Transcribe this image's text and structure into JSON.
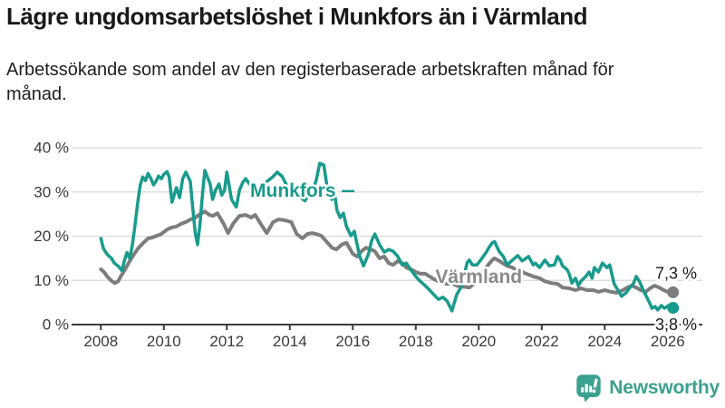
{
  "header": {
    "title": "Lägre ungdomsarbetslöshet i Munkfors än i Värmland",
    "subtitle": "Arbetssökande som andel av den registerbaserade arbetskraften månad för månad."
  },
  "footer": {
    "brand": "Newsworthy",
    "logo_icon": "bar-chart-exclamation-pin",
    "brand_color": "#3ba191"
  },
  "colors": {
    "munkfors": "#189b8d",
    "varmland": "#7d7d7d",
    "varmland_label": "#8a8a8a",
    "grid": "#d9d9d9",
    "axis": "#3c3c3c",
    "axis_text": "#3a3a3a",
    "value_label_text": "#1a1a1a"
  },
  "chart_data": {
    "type": "line",
    "title": "Lägre ungdomsarbetslöshet i Munkfors än i Värmland",
    "subtitle": "Arbetssökande som andel av den registerbaserade arbetskraften månad för månad.",
    "unit": "%",
    "xlim": [
      2007.1,
      2027.1
    ],
    "ylim": [
      0,
      40
    ],
    "grid": "horizontal",
    "legend_position": "inline-labels",
    "x_ticks": [
      2008,
      2010,
      2012,
      2014,
      2016,
      2018,
      2020,
      2022,
      2024,
      2026
    ],
    "y_ticks": [
      {
        "value": 0,
        "label": "0 %"
      },
      {
        "value": 10,
        "label": "10 %"
      },
      {
        "value": 20,
        "label": "20 %"
      },
      {
        "value": 30,
        "label": "30 %"
      },
      {
        "value": 40,
        "label": "40 %"
      }
    ],
    "annotations": [
      {
        "text": "Munkfors",
        "x": 2014.1,
        "y": 30.4,
        "color": "#189b8d",
        "leader": {
          "x1": 2015.65,
          "y1": 30.2,
          "x2": 2016.05,
          "y2": 30.2
        }
      },
      {
        "text": "Värmland",
        "x": 2020.0,
        "y": 10.9,
        "color": "#8a8a8a"
      }
    ],
    "series": [
      {
        "name": "Värmland",
        "color": "#7d7d7d",
        "end_value": 7.3,
        "end_label": "7,3 %",
        "end_label_side": "above",
        "points": [
          [
            2008.0,
            12.5
          ],
          [
            2008.1,
            11.9
          ],
          [
            2008.2,
            10.9
          ],
          [
            2008.35,
            9.8
          ],
          [
            2008.45,
            9.4
          ],
          [
            2008.55,
            9.8
          ],
          [
            2008.63,
            10.9
          ],
          [
            2008.77,
            12.5
          ],
          [
            2008.92,
            14.4
          ],
          [
            2009.06,
            16.0
          ],
          [
            2009.2,
            17.4
          ],
          [
            2009.35,
            18.5
          ],
          [
            2009.5,
            19.5
          ],
          [
            2009.63,
            19.7
          ],
          [
            2009.78,
            20.1
          ],
          [
            2009.92,
            20.5
          ],
          [
            2010.1,
            21.5
          ],
          [
            2010.25,
            22.0
          ],
          [
            2010.4,
            22.2
          ],
          [
            2010.55,
            22.8
          ],
          [
            2010.7,
            23.2
          ],
          [
            2010.85,
            23.8
          ],
          [
            2011.0,
            24.2
          ],
          [
            2011.15,
            25.0
          ],
          [
            2011.3,
            25.6
          ],
          [
            2011.45,
            24.8
          ],
          [
            2011.56,
            24.6
          ],
          [
            2011.7,
            25.2
          ],
          [
            2011.9,
            22.8
          ],
          [
            2012.04,
            20.7
          ],
          [
            2012.2,
            22.8
          ],
          [
            2012.4,
            24.6
          ],
          [
            2012.6,
            24.8
          ],
          [
            2012.77,
            24.2
          ],
          [
            2012.9,
            24.8
          ],
          [
            2013.13,
            22.2
          ],
          [
            2013.27,
            20.7
          ],
          [
            2013.47,
            23.2
          ],
          [
            2013.64,
            23.8
          ],
          [
            2013.84,
            23.6
          ],
          [
            2014.05,
            23.2
          ],
          [
            2014.22,
            20.5
          ],
          [
            2014.4,
            19.5
          ],
          [
            2014.56,
            20.5
          ],
          [
            2014.7,
            20.7
          ],
          [
            2014.84,
            20.5
          ],
          [
            2015.0,
            20.1
          ],
          [
            2015.2,
            18.5
          ],
          [
            2015.34,
            17.4
          ],
          [
            2015.48,
            17.0
          ],
          [
            2015.65,
            18.1
          ],
          [
            2015.8,
            18.5
          ],
          [
            2016.0,
            16.0
          ],
          [
            2016.14,
            15.4
          ],
          [
            2016.28,
            16.6
          ],
          [
            2016.42,
            17.4
          ],
          [
            2016.57,
            17.0
          ],
          [
            2016.7,
            16.6
          ],
          [
            2016.85,
            15.0
          ],
          [
            2017.0,
            15.4
          ],
          [
            2017.14,
            13.9
          ],
          [
            2017.28,
            13.5
          ],
          [
            2017.43,
            14.4
          ],
          [
            2017.57,
            13.9
          ],
          [
            2017.7,
            12.9
          ],
          [
            2017.85,
            12.5
          ],
          [
            2018.0,
            11.9
          ],
          [
            2018.14,
            11.5
          ],
          [
            2018.3,
            11.5
          ],
          [
            2018.44,
            10.9
          ],
          [
            2018.57,
            10.3
          ],
          [
            2018.72,
            9.8
          ],
          [
            2018.86,
            9.4
          ],
          [
            2019.0,
            9.2
          ],
          [
            2019.15,
            9.4
          ],
          [
            2019.3,
            8.8
          ],
          [
            2019.45,
            8.6
          ],
          [
            2019.6,
            8.5
          ],
          [
            2019.7,
            8.4
          ],
          [
            2019.85,
            9.2
          ],
          [
            2020.0,
            10.5
          ],
          [
            2020.14,
            12.0
          ],
          [
            2020.3,
            13.5
          ],
          [
            2020.43,
            14.6
          ],
          [
            2020.5,
            15.0
          ],
          [
            2020.65,
            14.4
          ],
          [
            2020.8,
            13.7
          ],
          [
            2020.9,
            13.3
          ],
          [
            2021.07,
            12.9
          ],
          [
            2021.16,
            12.5
          ],
          [
            2021.3,
            12.3
          ],
          [
            2021.44,
            11.7
          ],
          [
            2021.58,
            11.3
          ],
          [
            2021.73,
            10.9
          ],
          [
            2021.93,
            10.5
          ],
          [
            2022.1,
            9.8
          ],
          [
            2022.3,
            9.4
          ],
          [
            2022.5,
            9.2
          ],
          [
            2022.66,
            8.4
          ],
          [
            2022.87,
            8.2
          ],
          [
            2023.07,
            7.8
          ],
          [
            2023.24,
            8.2
          ],
          [
            2023.44,
            7.8
          ],
          [
            2023.64,
            7.8
          ],
          [
            2023.8,
            7.4
          ],
          [
            2024.0,
            7.8
          ],
          [
            2024.2,
            7.4
          ],
          [
            2024.38,
            7.2
          ],
          [
            2024.58,
            7.8
          ],
          [
            2024.72,
            8.4
          ],
          [
            2024.86,
            8.8
          ],
          [
            2025.0,
            8.4
          ],
          [
            2025.15,
            7.8
          ],
          [
            2025.3,
            7.4
          ],
          [
            2025.44,
            8.2
          ],
          [
            2025.58,
            8.8
          ],
          [
            2025.73,
            8.4
          ],
          [
            2025.87,
            7.8
          ],
          [
            2026.0,
            7.4
          ],
          [
            2026.17,
            7.3
          ]
        ]
      },
      {
        "name": "Munkfors",
        "color": "#189b8d",
        "end_value": 3.8,
        "end_label": "3,8 %",
        "end_label_side": "below",
        "points": [
          [
            2008.0,
            19.5
          ],
          [
            2008.08,
            17.2
          ],
          [
            2008.17,
            16.2
          ],
          [
            2008.25,
            15.5
          ],
          [
            2008.33,
            15.1
          ],
          [
            2008.42,
            14.0
          ],
          [
            2008.5,
            13.5
          ],
          [
            2008.58,
            13.0
          ],
          [
            2008.67,
            12.2
          ],
          [
            2008.75,
            14.5
          ],
          [
            2008.83,
            16.3
          ],
          [
            2008.92,
            15.0
          ],
          [
            2009.0,
            18.0
          ],
          [
            2009.08,
            22.2
          ],
          [
            2009.17,
            27.5
          ],
          [
            2009.25,
            31.5
          ],
          [
            2009.33,
            33.4
          ],
          [
            2009.42,
            32.6
          ],
          [
            2009.5,
            34.2
          ],
          [
            2009.58,
            33.2
          ],
          [
            2009.67,
            31.6
          ],
          [
            2009.75,
            32.4
          ],
          [
            2009.83,
            33.6
          ],
          [
            2009.92,
            33.0
          ],
          [
            2010.0,
            34.0
          ],
          [
            2010.1,
            34.6
          ],
          [
            2010.17,
            33.4
          ],
          [
            2010.26,
            27.7
          ],
          [
            2010.4,
            31.0
          ],
          [
            2010.5,
            28.7
          ],
          [
            2010.6,
            33.0
          ],
          [
            2010.7,
            34.5
          ],
          [
            2010.84,
            32.4
          ],
          [
            2010.92,
            26.3
          ],
          [
            2011.0,
            20.7
          ],
          [
            2011.07,
            18.1
          ],
          [
            2011.15,
            22.8
          ],
          [
            2011.22,
            29.0
          ],
          [
            2011.3,
            34.9
          ],
          [
            2011.47,
            31.8
          ],
          [
            2011.55,
            28.3
          ],
          [
            2011.64,
            30.4
          ],
          [
            2011.75,
            31.8
          ],
          [
            2011.84,
            29.3
          ],
          [
            2011.93,
            30.4
          ],
          [
            2012.0,
            34.5
          ],
          [
            2012.15,
            28.3
          ],
          [
            2012.3,
            26.6
          ],
          [
            2012.4,
            30.4
          ],
          [
            2012.5,
            32.1
          ],
          [
            2012.6,
            33.0
          ],
          [
            2012.75,
            31.5
          ],
          [
            2012.9,
            30.2
          ],
          [
            2013.0,
            31.0
          ],
          [
            2013.2,
            32.0
          ],
          [
            2013.35,
            32.8
          ],
          [
            2013.47,
            33.5
          ],
          [
            2013.6,
            34.5
          ],
          [
            2013.76,
            33.5
          ],
          [
            2013.9,
            31.5
          ],
          [
            2014.1,
            30.0
          ],
          [
            2014.3,
            29.0
          ],
          [
            2014.48,
            28.0
          ],
          [
            2014.6,
            29.5
          ],
          [
            2014.75,
            30.5
          ],
          [
            2014.85,
            33.0
          ],
          [
            2014.95,
            36.5
          ],
          [
            2015.08,
            36.1
          ],
          [
            2015.2,
            30.4
          ],
          [
            2015.34,
            28.3
          ],
          [
            2015.42,
            29.7
          ],
          [
            2015.5,
            25.8
          ],
          [
            2015.6,
            24.2
          ],
          [
            2015.7,
            25.2
          ],
          [
            2015.8,
            22.2
          ],
          [
            2015.94,
            20.1
          ],
          [
            2016.05,
            21.1
          ],
          [
            2016.14,
            18.1
          ],
          [
            2016.22,
            15.4
          ],
          [
            2016.34,
            13.3
          ],
          [
            2016.5,
            16.0
          ],
          [
            2016.6,
            19.0
          ],
          [
            2016.7,
            20.5
          ],
          [
            2016.85,
            18.1
          ],
          [
            2017.0,
            16.4
          ],
          [
            2017.14,
            17.0
          ],
          [
            2017.28,
            16.6
          ],
          [
            2017.43,
            15.4
          ],
          [
            2017.57,
            13.5
          ],
          [
            2017.7,
            13.9
          ],
          [
            2017.85,
            12.3
          ],
          [
            2018.0,
            10.9
          ],
          [
            2018.14,
            9.8
          ],
          [
            2018.3,
            8.8
          ],
          [
            2018.44,
            7.8
          ],
          [
            2018.57,
            6.8
          ],
          [
            2018.72,
            5.7
          ],
          [
            2018.86,
            6.2
          ],
          [
            2019.0,
            5.3
          ],
          [
            2019.15,
            3.1
          ],
          [
            2019.23,
            5.1
          ],
          [
            2019.3,
            6.8
          ],
          [
            2019.43,
            8.4
          ],
          [
            2019.55,
            11.5
          ],
          [
            2019.63,
            14.0
          ],
          [
            2019.7,
            14.6
          ],
          [
            2019.8,
            13.5
          ],
          [
            2019.94,
            13.5
          ],
          [
            2020.1,
            15.0
          ],
          [
            2020.24,
            16.4
          ],
          [
            2020.33,
            17.5
          ],
          [
            2020.43,
            18.5
          ],
          [
            2020.5,
            18.8
          ],
          [
            2020.65,
            16.5
          ],
          [
            2020.78,
            15.4
          ],
          [
            2020.9,
            13.5
          ],
          [
            2021.07,
            14.6
          ],
          [
            2021.24,
            15.6
          ],
          [
            2021.38,
            14.4
          ],
          [
            2021.58,
            15.4
          ],
          [
            2021.73,
            13.5
          ],
          [
            2021.8,
            13.9
          ],
          [
            2021.93,
            12.9
          ],
          [
            2022.1,
            14.6
          ],
          [
            2022.24,
            13.3
          ],
          [
            2022.4,
            13.5
          ],
          [
            2022.5,
            15.4
          ],
          [
            2022.6,
            14.4
          ],
          [
            2022.66,
            13.3
          ],
          [
            2022.8,
            12.5
          ],
          [
            2022.87,
            11.5
          ],
          [
            2022.96,
            9.4
          ],
          [
            2023.07,
            10.5
          ],
          [
            2023.16,
            8.8
          ],
          [
            2023.24,
            9.8
          ],
          [
            2023.4,
            10.9
          ],
          [
            2023.5,
            11.9
          ],
          [
            2023.6,
            10.5
          ],
          [
            2023.67,
            12.9
          ],
          [
            2023.8,
            11.9
          ],
          [
            2023.93,
            13.9
          ],
          [
            2024.07,
            12.9
          ],
          [
            2024.16,
            13.5
          ],
          [
            2024.3,
            9.2
          ],
          [
            2024.45,
            7.4
          ],
          [
            2024.53,
            6.4
          ],
          [
            2024.68,
            7.2
          ],
          [
            2024.8,
            8.4
          ],
          [
            2024.92,
            9.4
          ],
          [
            2025.0,
            10.9
          ],
          [
            2025.1,
            9.8
          ],
          [
            2025.25,
            7.4
          ],
          [
            2025.4,
            5.3
          ],
          [
            2025.5,
            3.7
          ],
          [
            2025.6,
            4.1
          ],
          [
            2025.68,
            3.3
          ],
          [
            2025.8,
            4.3
          ],
          [
            2025.9,
            3.7
          ],
          [
            2026.02,
            4.3
          ],
          [
            2026.17,
            3.8
          ]
        ]
      }
    ]
  }
}
